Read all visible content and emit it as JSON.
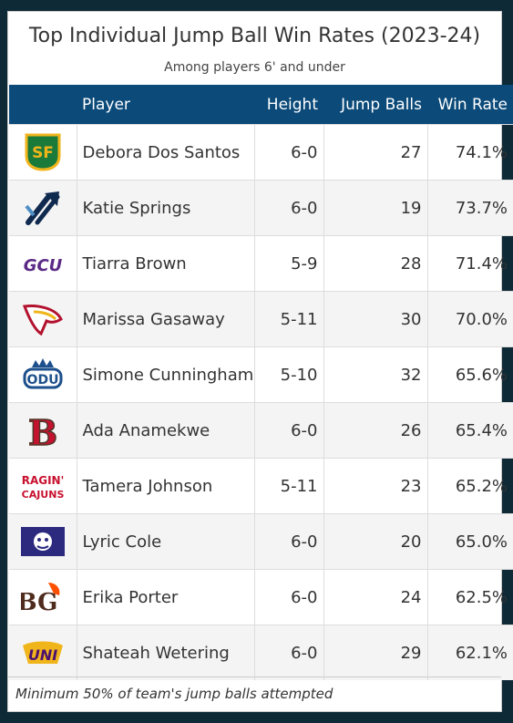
{
  "title": "Top Individual Jump Ball Win Rates (2023-24)",
  "subtitle": "Among players 6' and under",
  "columns": {
    "player": "Player",
    "height": "Height",
    "jump_balls": "Jump Balls",
    "win_rate": "Win Rate"
  },
  "rows": [
    {
      "logo": "usf-logo",
      "player": "Debora Dos Santos",
      "height": "6-0",
      "jump_balls": "27",
      "win_rate": "74.1%"
    },
    {
      "logo": "trident-logo",
      "player": "Katie Springs",
      "height": "6-0",
      "jump_balls": "19",
      "win_rate": "73.7%"
    },
    {
      "logo": "gcu-logo",
      "player": "Tiarra Brown",
      "height": "5-9",
      "jump_balls": "28",
      "win_rate": "71.4%"
    },
    {
      "logo": "warhawk-logo",
      "player": "Marissa Gasaway",
      "height": "5-11",
      "jump_balls": "30",
      "win_rate": "70.0%"
    },
    {
      "logo": "odu-logo",
      "player": "Simone Cunningham",
      "height": "5-10",
      "jump_balls": "32",
      "win_rate": "65.6%"
    },
    {
      "logo": "brown-b-logo",
      "player": "Ada Anamekwe",
      "height": "6-0",
      "jump_balls": "26",
      "win_rate": "65.4%"
    },
    {
      "logo": "ragin-cajuns-logo",
      "player": "Tamera Johnson",
      "height": "5-11",
      "jump_balls": "23",
      "win_rate": "65.2%"
    },
    {
      "logo": "tiger-logo",
      "player": "Lyric Cole",
      "height": "6-0",
      "jump_balls": "20",
      "win_rate": "65.0%"
    },
    {
      "logo": "bg-logo",
      "player": "Erika Porter",
      "height": "6-0",
      "jump_balls": "24",
      "win_rate": "62.5%"
    },
    {
      "logo": "uni-logo",
      "player": "Shateah Wetering",
      "height": "6-0",
      "jump_balls": "29",
      "win_rate": "62.1%"
    }
  ],
  "logo_text": {
    "usf": "SF",
    "gcu": "GCU",
    "odu": "ODU",
    "b": "B",
    "ragin": "RAGIN'",
    "cajuns": "CAJUNS",
    "bg": "BG",
    "uni": "UNI"
  },
  "colors": {
    "header_bg": "#0b4a79",
    "outer_bg": "#0e2a36",
    "row_alt": "#f4f4f4"
  },
  "footnote": "Minimum 50% of team's jump balls attempted"
}
